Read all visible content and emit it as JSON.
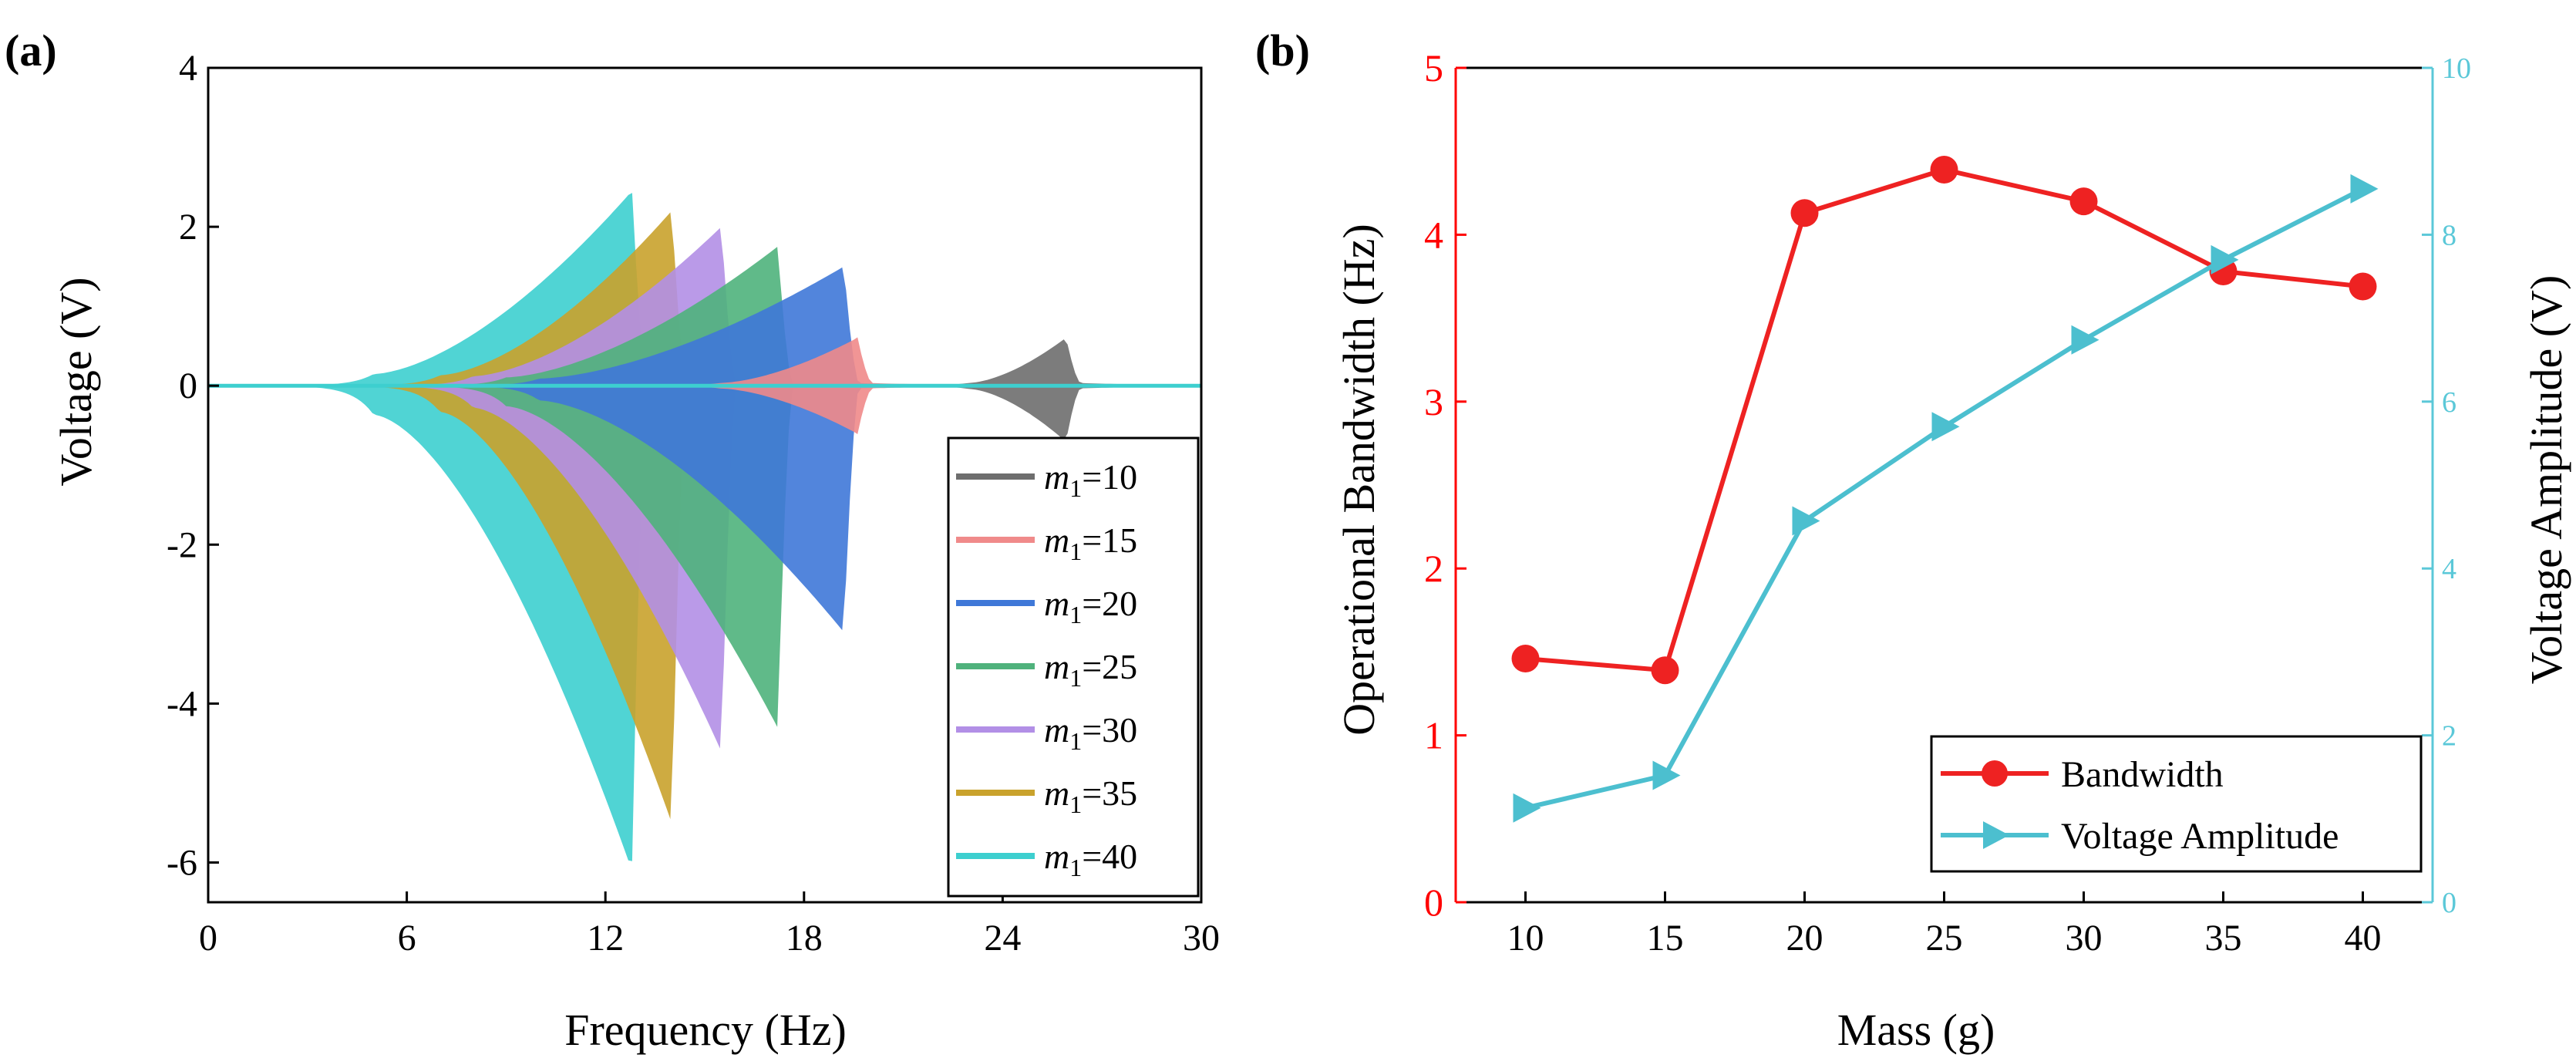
{
  "chart_data": [
    {
      "panel_label": "(a)",
      "type": "area",
      "xlabel": "Frequency (Hz)",
      "ylabel": "Voltage (V)",
      "xlim": [
        0,
        30
      ],
      "ylim": [
        -6.5,
        4
      ],
      "xticks": [
        0,
        6,
        12,
        18,
        24,
        30
      ],
      "xtick_labels": [
        "0",
        "6",
        "12",
        "18",
        "24",
        "30"
      ],
      "yticks": [
        -6,
        -4,
        -2,
        0,
        2,
        4
      ],
      "ytick_labels": [
        "-6",
        "-4",
        "-2",
        "0",
        "2",
        "4"
      ],
      "legend_position": "bottom-right",
      "series": [
        {
          "name": "m1=10",
          "legend_prefix": "m",
          "legend_sub": "1",
          "legend_value": "=10",
          "color": "#6e6e6e",
          "peak_x": 25.9,
          "upper_peak": 0.6,
          "lower_peak": -0.7,
          "onset_x": 23.0,
          "end_x": 30.0
        },
        {
          "name": "m1=15",
          "legend_prefix": "m",
          "legend_sub": "1",
          "legend_value": "=15",
          "color": "#f08a8a",
          "peak_x": 19.6,
          "upper_peak": 0.6,
          "lower_peak": -0.6,
          "onset_x": 15.5,
          "end_x": 23.0
        },
        {
          "name": "m1=20",
          "legend_prefix": "m",
          "legend_sub": "1",
          "legend_value": "=20",
          "color": "#3f78d8",
          "peak_x": 19.2,
          "upper_peak": 1.5,
          "lower_peak": -3.1,
          "onset_x": 10.0,
          "end_x": 23.0
        },
        {
          "name": "m1=25",
          "legend_prefix": "m",
          "legend_sub": "1",
          "legend_value": "=25",
          "color": "#4fb27c",
          "peak_x": 17.2,
          "upper_peak": 1.75,
          "lower_peak": -4.3,
          "onset_x": 9.0,
          "end_x": 22.0
        },
        {
          "name": "m1=30",
          "legend_prefix": "m",
          "legend_sub": "1",
          "legend_value": "=30",
          "color": "#b28fe6",
          "peak_x": 15.5,
          "upper_peak": 2.0,
          "lower_peak": -4.6,
          "onset_x": 8.0,
          "end_x": 21.0
        },
        {
          "name": "m1=35",
          "legend_prefix": "m",
          "legend_sub": "1",
          "legend_value": "=35",
          "color": "#c9a22c",
          "peak_x": 14.0,
          "upper_peak": 2.2,
          "lower_peak": -5.5,
          "onset_x": 7.0,
          "end_x": 20.0
        },
        {
          "name": "m1=40",
          "legend_prefix": "m",
          "legend_sub": "1",
          "legend_value": "=40",
          "color": "#3dcfcf",
          "peak_x": 12.8,
          "upper_peak": 2.45,
          "lower_peak": -6.1,
          "onset_x": 5.0,
          "end_x": 19.0
        }
      ]
    },
    {
      "panel_label": "(b)",
      "type": "line",
      "xlabel": "Mass (g)",
      "ylabel_left": "Operational Bandwidth (Hz)",
      "ylabel_right": "Voltage Amplitude (V)",
      "xlim": [
        7.5,
        42.5
      ],
      "ylim_left": [
        0,
        5
      ],
      "ylim_right": [
        0,
        10
      ],
      "xticks": [
        10,
        15,
        20,
        25,
        30,
        35,
        40
      ],
      "xtick_labels": [
        "10",
        "15",
        "20",
        "25",
        "30",
        "35",
        "40"
      ],
      "yticks_left": [
        0,
        1,
        2,
        3,
        4,
        5
      ],
      "ytick_labels_left": [
        "0",
        "1",
        "2",
        "3",
        "4",
        "5"
      ],
      "yticks_right": [
        0,
        2,
        4,
        6,
        8,
        10
      ],
      "ytick_labels_right": [
        "0",
        "2",
        "4",
        "6",
        "8",
        "10"
      ],
      "left_axis_color": "#ff0000",
      "right_axis_color": "#5bc8d8",
      "legend_position": "bottom-right",
      "x": [
        10,
        15,
        20,
        25,
        30,
        35,
        40
      ],
      "series": [
        {
          "name": "Bandwidth",
          "axis": "left",
          "color": "#ee2222",
          "marker": "circle",
          "values": [
            1.46,
            1.39,
            4.13,
            4.39,
            4.2,
            3.78,
            3.69
          ]
        },
        {
          "name": "Voltage Amplitude",
          "axis": "right",
          "color": "#4cbfcf",
          "marker": "triangle-right",
          "values": [
            1.13,
            1.52,
            4.57,
            5.7,
            6.74,
            7.7,
            8.55
          ]
        }
      ]
    }
  ]
}
